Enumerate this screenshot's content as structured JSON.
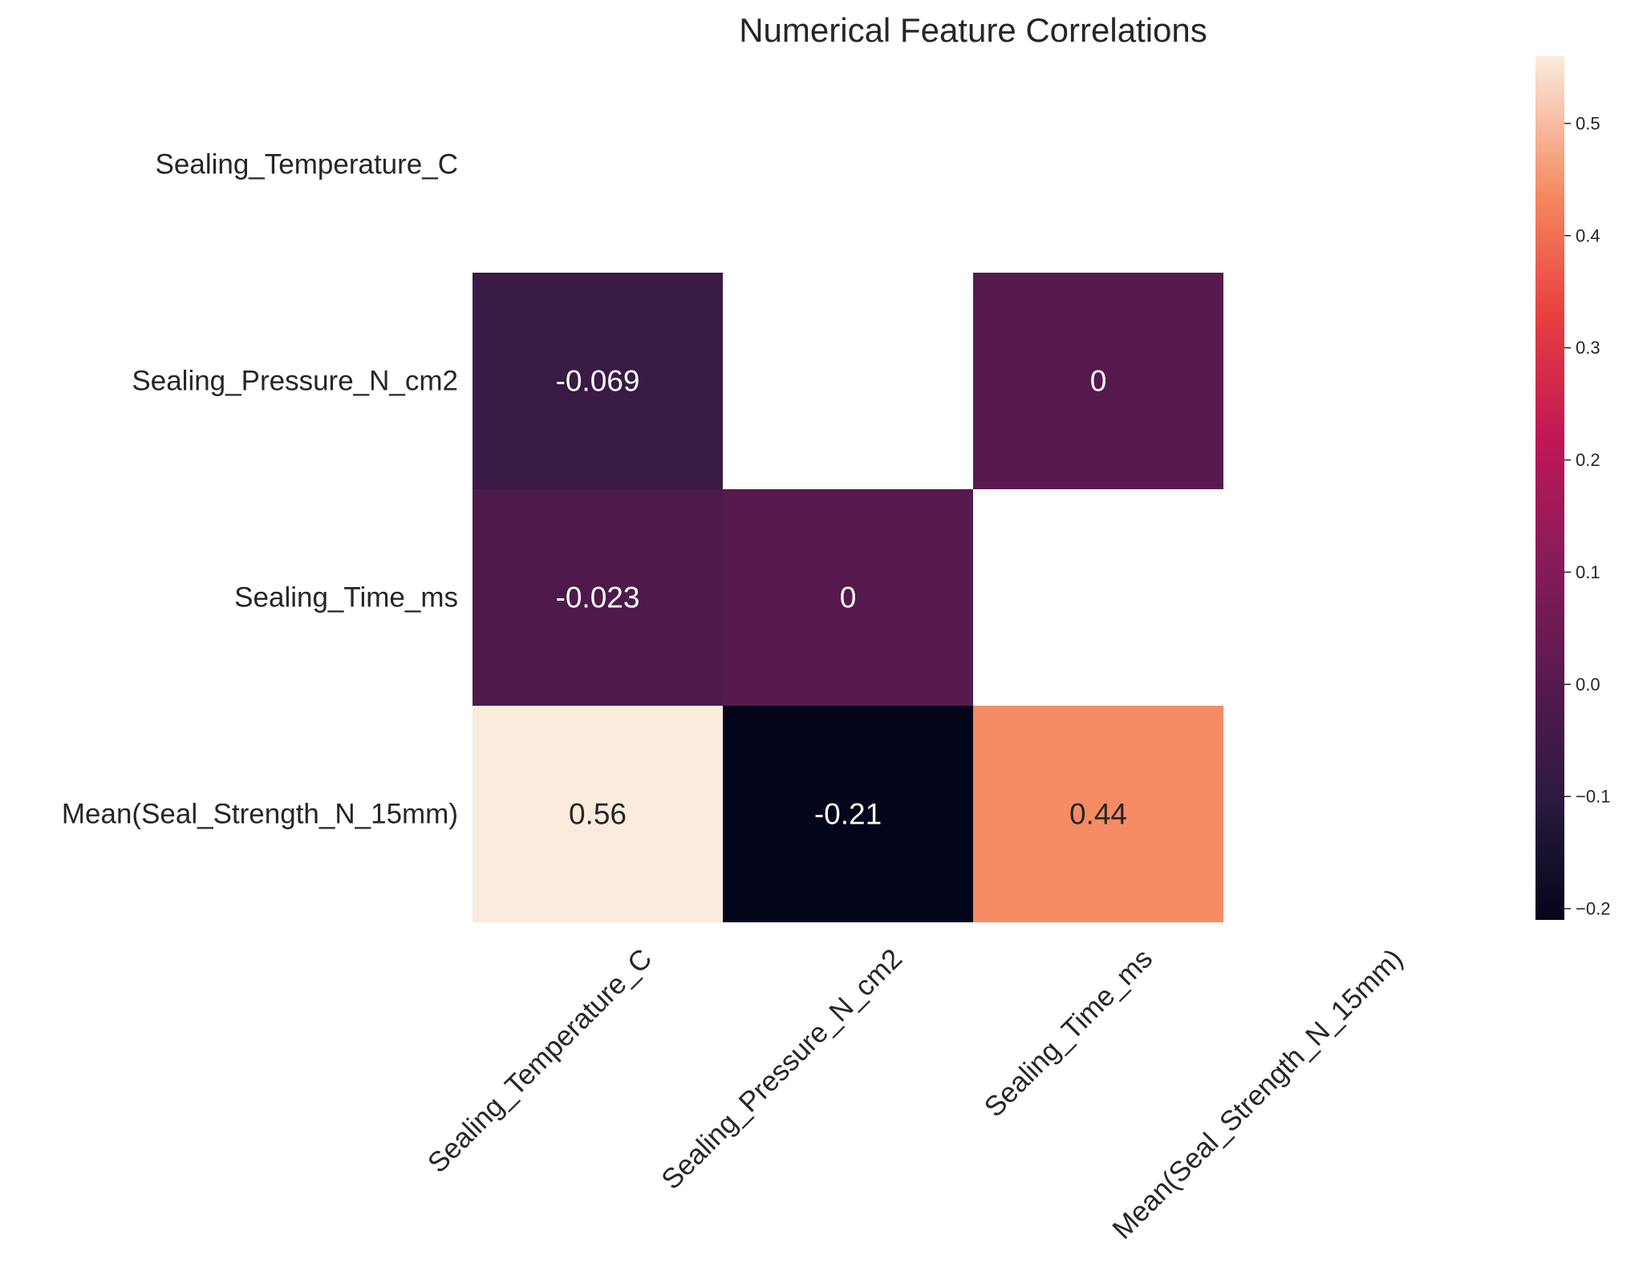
{
  "chart_data": {
    "type": "heatmap",
    "title": "Numerical Feature Correlations",
    "rows": [
      "Sealing_Temperature_C",
      "Sealing_Pressure_N_cm2",
      "Sealing_Time_ms",
      "Mean(Seal_Strength_N_15mm)"
    ],
    "columns": [
      "Sealing_Temperature_C",
      "Sealing_Pressure_N_cm2",
      "Sealing_Time_ms",
      "Mean(Seal_Strength_N_15mm)"
    ],
    "values": [
      [
        null,
        null,
        null,
        null
      ],
      [
        -0.069,
        null,
        0,
        null
      ],
      [
        -0.023,
        0,
        null,
        null
      ],
      [
        0.56,
        -0.21,
        0.44,
        null
      ]
    ],
    "annotations": [
      [
        null,
        null,
        null,
        null
      ],
      [
        "-0.069",
        null,
        "0",
        null
      ],
      [
        "-0.023",
        "0",
        null,
        null
      ],
      [
        "0.56",
        "-0.21",
        "0.44",
        null
      ]
    ],
    "colormap": "rocket",
    "colorbar": {
      "min": -0.21,
      "max": 0.56,
      "ticks": [
        -0.2,
        -0.1,
        0.0,
        0.1,
        0.2,
        0.3,
        0.4,
        0.5
      ],
      "tick_labels": [
        "−0.2",
        "−0.1",
        "0.0",
        "0.1",
        "0.2",
        "0.3",
        "0.4",
        "0.5"
      ]
    },
    "grid": false,
    "legend": "colorbar-right"
  }
}
